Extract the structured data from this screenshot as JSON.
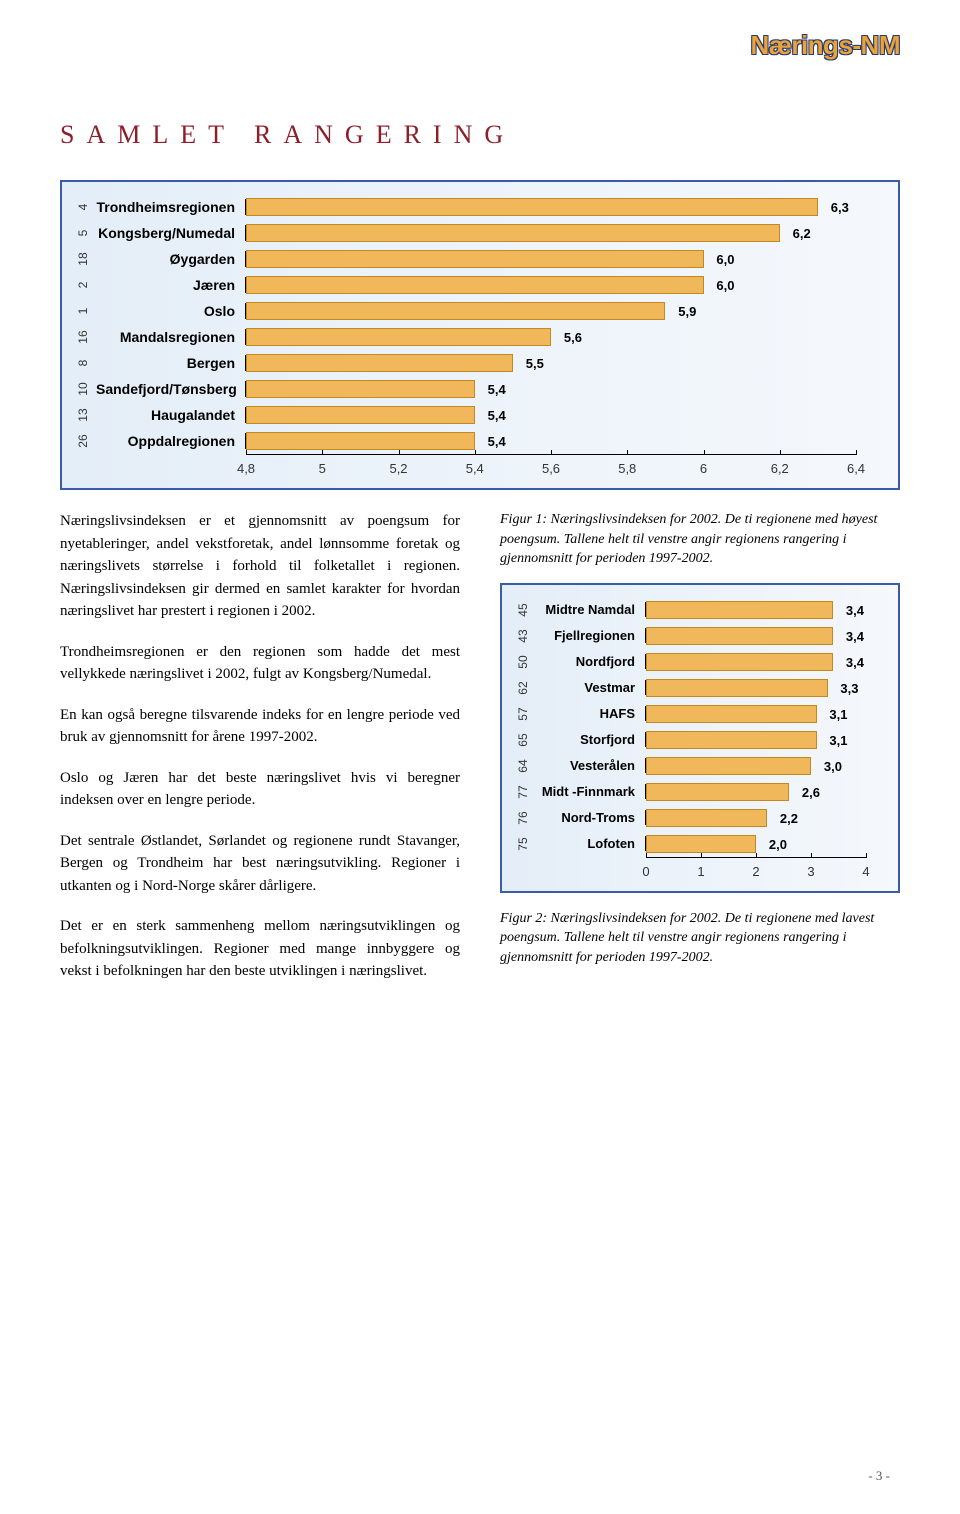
{
  "logo": "Nærings-NM",
  "section_title": "SAMLET RANGERING",
  "chart1": {
    "type": "bar",
    "xmin": 4.8,
    "xmax": 6.4,
    "xticks": [
      "4,8",
      "5",
      "5,2",
      "5,4",
      "5,6",
      "5,8",
      "6",
      "6,2",
      "6,4"
    ],
    "bar_color": "#f0b85a",
    "bar_border": "#c48820",
    "bg_gradient_from": "#e4eef8",
    "bg_gradient_to": "#f5f8fc",
    "rows": [
      {
        "rank": "4",
        "label": "Trondheimsregionen",
        "value": 6.3,
        "display": "6,3"
      },
      {
        "rank": "5",
        "label": "Kongsberg/Numedal",
        "value": 6.2,
        "display": "6,2"
      },
      {
        "rank": "18",
        "label": "Øygarden",
        "value": 6.0,
        "display": "6,0"
      },
      {
        "rank": "2",
        "label": "Jæren",
        "value": 6.0,
        "display": "6,0"
      },
      {
        "rank": "1",
        "label": "Oslo",
        "value": 5.9,
        "display": "5,9"
      },
      {
        "rank": "16",
        "label": "Mandalsregionen",
        "value": 5.6,
        "display": "5,6"
      },
      {
        "rank": "8",
        "label": "Bergen",
        "value": 5.5,
        "display": "5,5"
      },
      {
        "rank": "10",
        "label": "Sandefjord/Tønsberg",
        "value": 5.4,
        "display": "5,4"
      },
      {
        "rank": "13",
        "label": "Haugalandet",
        "value": 5.4,
        "display": "5,4"
      },
      {
        "rank": "26",
        "label": "Oppdalregionen",
        "value": 5.4,
        "display": "5,4"
      }
    ]
  },
  "chart2": {
    "type": "bar",
    "xmin": 0,
    "xmax": 4,
    "xticks": [
      "0",
      "1",
      "2",
      "3",
      "4"
    ],
    "bar_color": "#f0b85a",
    "bar_border": "#c48820",
    "rows": [
      {
        "rank": "45",
        "label": "Midtre Namdal",
        "value": 3.4,
        "display": "3,4"
      },
      {
        "rank": "43",
        "label": "Fjellregionen",
        "value": 3.4,
        "display": "3,4"
      },
      {
        "rank": "50",
        "label": "Nordfjord",
        "value": 3.4,
        "display": "3,4"
      },
      {
        "rank": "62",
        "label": "Vestmar",
        "value": 3.3,
        "display": "3,3"
      },
      {
        "rank": "57",
        "label": "HAFS",
        "value": 3.1,
        "display": "3,1"
      },
      {
        "rank": "65",
        "label": "Storfjord",
        "value": 3.1,
        "display": "3,1"
      },
      {
        "rank": "64",
        "label": "Vesterålen",
        "value": 3.0,
        "display": "3,0"
      },
      {
        "rank": "77",
        "label": "Midt -Finnmark",
        "value": 2.6,
        "display": "2,6"
      },
      {
        "rank": "76",
        "label": "Nord-Troms",
        "value": 2.2,
        "display": "2,2"
      },
      {
        "rank": "75",
        "label": "Lofoten",
        "value": 2.0,
        "display": "2,0"
      }
    ]
  },
  "body": {
    "p1": "Næringslivsindeksen er et gjennomsnitt av poengsum for nyetableringer, andel vekstforetak, andel lønnsomme foretak og næringslivets størrelse i forhold til folketallet i regionen. Næringslivsindeksen gir dermed en samlet karakter for hvordan næringslivet har prestert i regionen i 2002.",
    "p2": "Trondheimsregionen er den regionen som hadde det mest vellykkede næringslivet i 2002, fulgt av Kongsberg/Numedal.",
    "p3": "En kan også beregne tilsvarende indeks for en lengre periode ved bruk av gjennomsnitt for årene 1997-2002.",
    "p4": "Oslo og Jæren har det beste næringslivet hvis vi beregner indeksen over en lengre periode.",
    "p5": "Det sentrale Østlandet, Sørlandet og regionene rundt Stavanger, Bergen og Trondheim har best næringsutvikling. Regioner i utkanten og i Nord-Norge skårer dårligere.",
    "p6": "Det er en sterk sammenheng mellom næringsutviklingen og befolkningsutviklingen. Regioner med mange innbyggere og vekst i befolkningen har den beste utviklingen i næringslivet."
  },
  "captions": {
    "fig1": "Figur 1: Næringslivsindeksen for 2002. De ti regionene med høyest poengsum. Tallene helt til venstre angir regionens rangering i gjennomsnitt for perioden 1997-2002.",
    "fig2": "Figur 2: Næringslivsindeksen for 2002. De ti regionene med lavest poengsum. Tallene helt til venstre angir regionens rangering i gjennomsnitt for perioden 1997-2002."
  },
  "page_number": "- 3 -"
}
